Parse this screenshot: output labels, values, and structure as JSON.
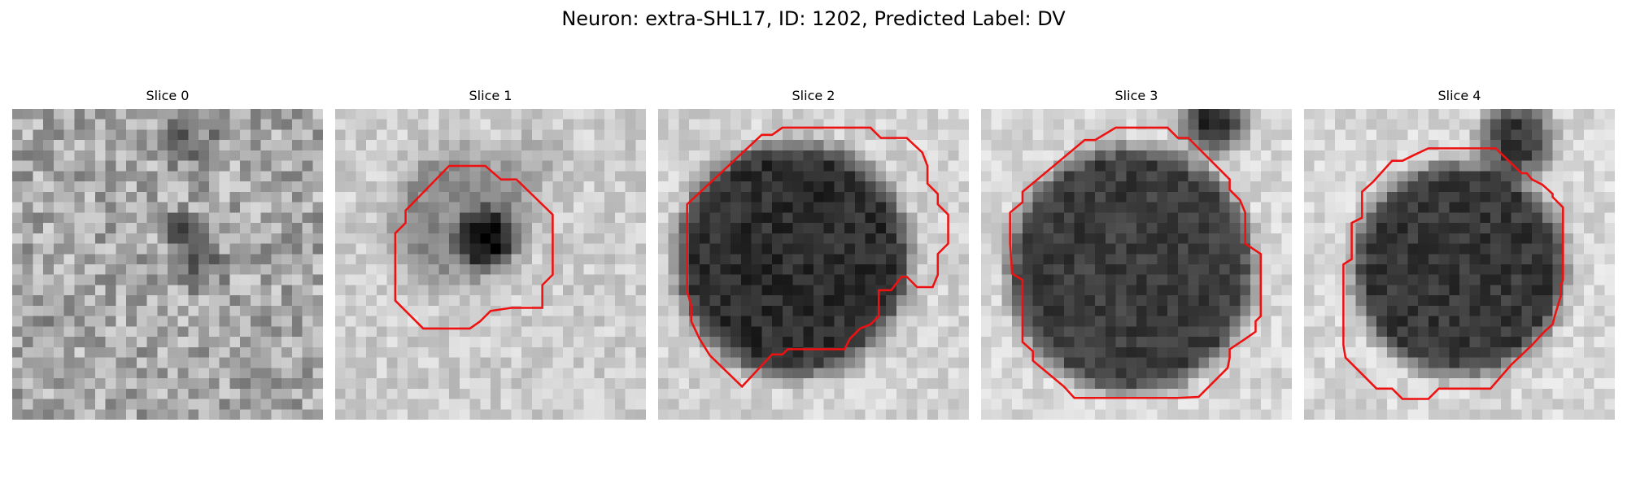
{
  "figure": {
    "title": "Neuron: extra-SHL17, ID: 1202, Predicted Label: DV",
    "contour_color": "#ee1111"
  },
  "panels": [
    {
      "title": "Slice 0",
      "has_contour": false
    },
    {
      "title": "Slice 1",
      "has_contour": true
    },
    {
      "title": "Slice 2",
      "has_contour": true
    },
    {
      "title": "Slice 3",
      "has_contour": true
    },
    {
      "title": "Slice 4",
      "has_contour": true
    }
  ]
}
